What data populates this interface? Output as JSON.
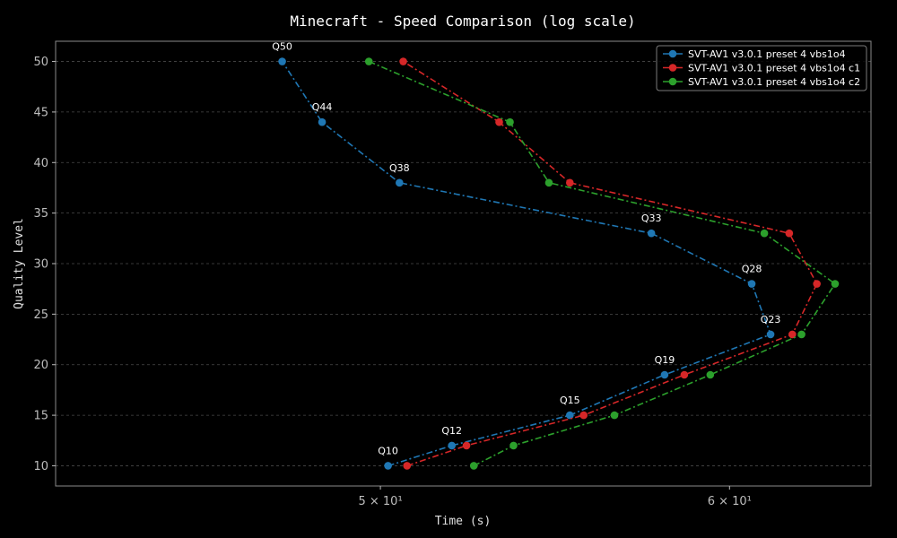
{
  "chart_data": {
    "type": "line",
    "title": "Minecraft - Speed Comparison (log scale)",
    "xlabel": "Time (s)",
    "ylabel": "Quality Level",
    "xscale": "log",
    "xlim": [
      42.2,
      64.6
    ],
    "ylim": [
      8,
      52
    ],
    "x_ticks": [
      {
        "value": 50,
        "label": "5 × 10¹"
      },
      {
        "value": 60,
        "label": "6 × 10¹"
      }
    ],
    "y_ticks": [
      10,
      15,
      20,
      25,
      30,
      35,
      40,
      45,
      50
    ],
    "grid": true,
    "legend_position": "top-right",
    "series": [
      {
        "name": "SVT-AV1 v3.0.1 preset 4 vbs1o4",
        "color": "#1f77b4",
        "points": [
          {
            "x": 50.2,
            "y": 10
          },
          {
            "x": 51.9,
            "y": 12
          },
          {
            "x": 55.2,
            "y": 15
          },
          {
            "x": 58.0,
            "y": 19
          },
          {
            "x": 61.3,
            "y": 23
          },
          {
            "x": 60.7,
            "y": 28
          },
          {
            "x": 57.6,
            "y": 33
          },
          {
            "x": 50.5,
            "y": 38
          },
          {
            "x": 48.5,
            "y": 44
          },
          {
            "x": 47.5,
            "y": 50
          }
        ]
      },
      {
        "name": "SVT-AV1 v3.0.1 preset 4 vbs1o4 c1",
        "color": "#d62728",
        "points": [
          {
            "x": 50.7,
            "y": 10
          },
          {
            "x": 52.3,
            "y": 12
          },
          {
            "x": 55.6,
            "y": 15
          },
          {
            "x": 58.6,
            "y": 19
          },
          {
            "x": 62.0,
            "y": 23
          },
          {
            "x": 62.8,
            "y": 28
          },
          {
            "x": 61.9,
            "y": 33
          },
          {
            "x": 55.2,
            "y": 38
          },
          {
            "x": 53.2,
            "y": 44
          },
          {
            "x": 50.6,
            "y": 50
          }
        ]
      },
      {
        "name": "SVT-AV1 v3.0.1 preset 4 vbs1o4 c2",
        "color": "#2ca02c",
        "points": [
          {
            "x": 52.5,
            "y": 10
          },
          {
            "x": 53.6,
            "y": 12
          },
          {
            "x": 56.5,
            "y": 15
          },
          {
            "x": 59.4,
            "y": 19
          },
          {
            "x": 62.3,
            "y": 23
          },
          {
            "x": 63.4,
            "y": 28
          },
          {
            "x": 61.1,
            "y": 33
          },
          {
            "x": 54.6,
            "y": 38
          },
          {
            "x": 53.5,
            "y": 44
          },
          {
            "x": 49.7,
            "y": 50
          }
        ]
      }
    ],
    "annotations": [
      {
        "text": "Q10",
        "x": 50.2,
        "y": 10
      },
      {
        "text": "Q12",
        "x": 51.9,
        "y": 12
      },
      {
        "text": "Q15",
        "x": 55.2,
        "y": 15
      },
      {
        "text": "Q19",
        "x": 58.0,
        "y": 19
      },
      {
        "text": "Q23",
        "x": 61.3,
        "y": 23
      },
      {
        "text": "Q28",
        "x": 60.7,
        "y": 28
      },
      {
        "text": "Q33",
        "x": 57.6,
        "y": 33
      },
      {
        "text": "Q38",
        "x": 50.5,
        "y": 38
      },
      {
        "text": "Q44",
        "x": 48.5,
        "y": 44
      },
      {
        "text": "Q50",
        "x": 47.5,
        "y": 50
      }
    ]
  }
}
